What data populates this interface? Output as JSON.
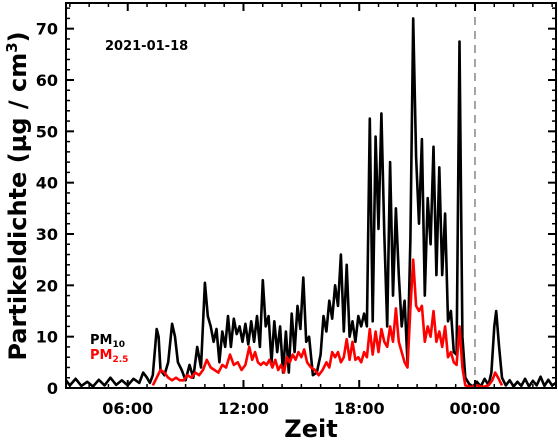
{
  "chart_data": {
    "type": "line",
    "date_label": "2021-01-18",
    "xlabel": "Zeit",
    "ylabel_prefix": "Partikeldichte (µg / cm",
    "ylabel_sup": "3",
    "ylabel_suffix": ")",
    "x_unit": "hours",
    "xlim": [
      2.8,
      28.2
    ],
    "ylim": [
      0,
      75
    ],
    "x_ticks": [
      {
        "x": 6,
        "label": "06:00"
      },
      {
        "x": 12,
        "label": "12:00"
      },
      {
        "x": 18,
        "label": "18:00"
      },
      {
        "x": 24,
        "label": "00:00"
      }
    ],
    "y_ticks": [
      {
        "y": 0,
        "label": "0"
      },
      {
        "y": 10,
        "label": "10"
      },
      {
        "y": 20,
        "label": "20"
      },
      {
        "y": 30,
        "label": "30"
      },
      {
        "y": 40,
        "label": "40"
      },
      {
        "y": 50,
        "label": "50"
      },
      {
        "y": 60,
        "label": "60"
      },
      {
        "y": 70,
        "label": "70"
      }
    ],
    "vline_x": 24,
    "vline_style": "dashed gray",
    "legend": {
      "placement": "lower-left",
      "entries": [
        {
          "base": "PM",
          "sub": "10",
          "color": "#000000"
        },
        {
          "base": "PM",
          "sub": "2.5",
          "color": "#ff0000"
        }
      ]
    },
    "series": [
      {
        "name": "PM10",
        "color": "#000000",
        "points": [
          [
            2.8,
            1.5
          ],
          [
            3.0,
            0.5
          ],
          [
            3.3,
            1.8
          ],
          [
            3.6,
            0.4
          ],
          [
            3.9,
            1.2
          ],
          [
            4.2,
            0.3
          ],
          [
            4.5,
            1.6
          ],
          [
            4.8,
            0.5
          ],
          [
            5.1,
            2.0
          ],
          [
            5.4,
            0.6
          ],
          [
            5.7,
            1.5
          ],
          [
            6.0,
            0.5
          ],
          [
            6.3,
            1.8
          ],
          [
            6.6,
            1.0
          ],
          [
            6.8,
            3.0
          ],
          [
            7.0,
            2.0
          ],
          [
            7.15,
            1.0
          ],
          [
            7.3,
            2.5
          ],
          [
            7.5,
            11.5
          ],
          [
            7.6,
            10.0
          ],
          [
            7.7,
            3.5
          ],
          [
            7.9,
            2.5
          ],
          [
            8.1,
            5.0
          ],
          [
            8.3,
            12.5
          ],
          [
            8.45,
            10.0
          ],
          [
            8.6,
            5.0
          ],
          [
            8.8,
            3.5
          ],
          [
            9.0,
            1.5
          ],
          [
            9.2,
            4.5
          ],
          [
            9.4,
            2.0
          ],
          [
            9.6,
            8.0
          ],
          [
            9.8,
            4.0
          ],
          [
            10.0,
            20.5
          ],
          [
            10.15,
            14.0
          ],
          [
            10.3,
            12.0
          ],
          [
            10.45,
            9.0
          ],
          [
            10.6,
            11.5
          ],
          [
            10.75,
            5.0
          ],
          [
            10.9,
            11.0
          ],
          [
            11.05,
            8.0
          ],
          [
            11.2,
            14.0
          ],
          [
            11.35,
            8.0
          ],
          [
            11.5,
            13.5
          ],
          [
            11.65,
            10.5
          ],
          [
            11.8,
            12.0
          ],
          [
            11.95,
            9.0
          ],
          [
            12.1,
            12.5
          ],
          [
            12.25,
            8.5
          ],
          [
            12.4,
            13.0
          ],
          [
            12.55,
            9.0
          ],
          [
            12.7,
            14.0
          ],
          [
            12.85,
            8.0
          ],
          [
            13.0,
            21.0
          ],
          [
            13.15,
            12.0
          ],
          [
            13.3,
            14.0
          ],
          [
            13.45,
            5.0
          ],
          [
            13.6,
            13.0
          ],
          [
            13.75,
            7.0
          ],
          [
            13.9,
            12.0
          ],
          [
            14.05,
            3.0
          ],
          [
            14.2,
            11.0
          ],
          [
            14.35,
            3.0
          ],
          [
            14.5,
            14.5
          ],
          [
            14.65,
            7.0
          ],
          [
            14.8,
            16.0
          ],
          [
            14.95,
            11.5
          ],
          [
            15.1,
            21.5
          ],
          [
            15.25,
            9.0
          ],
          [
            15.4,
            10.0
          ],
          [
            15.6,
            2.5
          ],
          [
            15.8,
            3.0
          ],
          [
            16.0,
            6.5
          ],
          [
            16.15,
            14.0
          ],
          [
            16.3,
            11.0
          ],
          [
            16.45,
            17.0
          ],
          [
            16.6,
            13.5
          ],
          [
            16.75,
            20.0
          ],
          [
            16.9,
            16.0
          ],
          [
            17.05,
            26.0
          ],
          [
            17.2,
            11.0
          ],
          [
            17.35,
            24.0
          ],
          [
            17.5,
            10.0
          ],
          [
            17.65,
            13.0
          ],
          [
            17.8,
            9.0
          ],
          [
            17.95,
            14.0
          ],
          [
            18.1,
            12.0
          ],
          [
            18.25,
            14.5
          ],
          [
            18.4,
            12.0
          ],
          [
            18.55,
            52.5
          ],
          [
            18.7,
            13.0
          ],
          [
            18.85,
            49.0
          ],
          [
            19.0,
            31.0
          ],
          [
            19.15,
            53.5
          ],
          [
            19.3,
            30.0
          ],
          [
            19.45,
            12.0
          ],
          [
            19.6,
            44.0
          ],
          [
            19.75,
            18.0
          ],
          [
            19.9,
            35.0
          ],
          [
            20.05,
            22.0
          ],
          [
            20.2,
            12.0
          ],
          [
            20.35,
            17.0
          ],
          [
            20.5,
            5.0
          ],
          [
            20.65,
            29.0
          ],
          [
            20.8,
            72.0
          ],
          [
            20.95,
            45.0
          ],
          [
            21.1,
            32.0
          ],
          [
            21.25,
            48.5
          ],
          [
            21.4,
            18.0
          ],
          [
            21.55,
            37.0
          ],
          [
            21.7,
            28.0
          ],
          [
            21.85,
            47.0
          ],
          [
            22.0,
            22.0
          ],
          [
            22.15,
            43.0
          ],
          [
            22.3,
            22.0
          ],
          [
            22.45,
            34.0
          ],
          [
            22.6,
            13.0
          ],
          [
            22.75,
            15.0
          ],
          [
            22.9,
            7.0
          ],
          [
            23.05,
            6.5
          ],
          [
            23.2,
            67.5
          ],
          [
            23.35,
            10.0
          ],
          [
            23.5,
            2.0
          ],
          [
            23.7,
            0.8
          ],
          [
            23.9,
            0.3
          ],
          [
            24.1,
            1.2
          ],
          [
            24.3,
            0.3
          ],
          [
            24.5,
            1.8
          ],
          [
            24.7,
            0.6
          ],
          [
            24.85,
            3.0
          ],
          [
            25.0,
            12.0
          ],
          [
            25.1,
            15.0
          ],
          [
            25.25,
            8.0
          ],
          [
            25.4,
            2.0
          ],
          [
            25.6,
            0.5
          ],
          [
            25.8,
            1.5
          ],
          [
            26.0,
            0.3
          ],
          [
            26.2,
            1.2
          ],
          [
            26.4,
            0.4
          ],
          [
            26.6,
            1.8
          ],
          [
            26.8,
            0.3
          ],
          [
            27.0,
            1.4
          ],
          [
            27.2,
            0.5
          ],
          [
            27.4,
            2.2
          ],
          [
            27.6,
            0.4
          ],
          [
            27.8,
            1.6
          ],
          [
            28.0,
            0.5
          ],
          [
            28.2,
            1.0
          ]
        ]
      },
      {
        "name": "PM2.5",
        "color": "#ff0000",
        "points": [
          [
            7.3,
            0.5
          ],
          [
            7.5,
            2.0
          ],
          [
            7.7,
            3.5
          ],
          [
            7.9,
            3.0
          ],
          [
            8.1,
            2.0
          ],
          [
            8.3,
            1.5
          ],
          [
            8.5,
            2.0
          ],
          [
            8.7,
            1.5
          ],
          [
            8.9,
            1.5
          ],
          [
            9.1,
            2.5
          ],
          [
            9.3,
            2.0
          ],
          [
            9.5,
            3.0
          ],
          [
            9.7,
            2.5
          ],
          [
            9.9,
            3.5
          ],
          [
            10.1,
            5.5
          ],
          [
            10.3,
            4.0
          ],
          [
            10.5,
            3.5
          ],
          [
            10.7,
            3.0
          ],
          [
            10.9,
            4.5
          ],
          [
            11.1,
            4.0
          ],
          [
            11.3,
            6.5
          ],
          [
            11.5,
            4.5
          ],
          [
            11.7,
            5.0
          ],
          [
            11.9,
            3.5
          ],
          [
            12.1,
            4.5
          ],
          [
            12.3,
            8.0
          ],
          [
            12.45,
            5.5
          ],
          [
            12.6,
            7.0
          ],
          [
            12.75,
            5.0
          ],
          [
            12.9,
            4.5
          ],
          [
            13.05,
            5.0
          ],
          [
            13.2,
            4.5
          ],
          [
            13.35,
            5.5
          ],
          [
            13.5,
            4.0
          ],
          [
            13.65,
            5.5
          ],
          [
            13.8,
            3.5
          ],
          [
            13.95,
            4.5
          ],
          [
            14.1,
            3.0
          ],
          [
            14.25,
            6.0
          ],
          [
            14.4,
            5.0
          ],
          [
            14.55,
            6.5
          ],
          [
            14.7,
            5.5
          ],
          [
            14.85,
            7.0
          ],
          [
            15.0,
            6.0
          ],
          [
            15.15,
            7.5
          ],
          [
            15.3,
            5.0
          ],
          [
            15.5,
            4.0
          ],
          [
            15.7,
            3.5
          ],
          [
            15.9,
            2.5
          ],
          [
            16.1,
            3.5
          ],
          [
            16.3,
            5.0
          ],
          [
            16.45,
            4.0
          ],
          [
            16.6,
            7.0
          ],
          [
            16.75,
            6.0
          ],
          [
            16.9,
            7.0
          ],
          [
            17.05,
            5.0
          ],
          [
            17.2,
            6.0
          ],
          [
            17.35,
            9.5
          ],
          [
            17.5,
            5.5
          ],
          [
            17.65,
            9.0
          ],
          [
            17.8,
            5.5
          ],
          [
            17.95,
            6.0
          ],
          [
            18.1,
            5.0
          ],
          [
            18.25,
            7.0
          ],
          [
            18.4,
            6.0
          ],
          [
            18.55,
            11.5
          ],
          [
            18.7,
            6.5
          ],
          [
            18.85,
            11.0
          ],
          [
            19.0,
            7.0
          ],
          [
            19.15,
            11.5
          ],
          [
            19.3,
            9.0
          ],
          [
            19.45,
            8.0
          ],
          [
            19.6,
            12.0
          ],
          [
            19.75,
            9.0
          ],
          [
            19.9,
            15.5
          ],
          [
            20.05,
            9.0
          ],
          [
            20.2,
            7.0
          ],
          [
            20.35,
            5.0
          ],
          [
            20.5,
            4.0
          ],
          [
            20.65,
            15.5
          ],
          [
            20.8,
            25.0
          ],
          [
            20.95,
            16.0
          ],
          [
            21.1,
            15.0
          ],
          [
            21.25,
            16.0
          ],
          [
            21.4,
            9.0
          ],
          [
            21.55,
            12.0
          ],
          [
            21.7,
            10.0
          ],
          [
            21.85,
            15.0
          ],
          [
            22.0,
            9.0
          ],
          [
            22.15,
            11.0
          ],
          [
            22.3,
            8.0
          ],
          [
            22.45,
            12.0
          ],
          [
            22.6,
            6.0
          ],
          [
            22.75,
            7.0
          ],
          [
            22.9,
            5.0
          ],
          [
            23.05,
            4.5
          ],
          [
            23.2,
            12.0
          ],
          [
            23.35,
            4.0
          ],
          [
            23.5,
            0.5
          ],
          [
            23.8,
            0.2
          ],
          [
            24.1,
            0.5
          ],
          [
            24.4,
            0.2
          ],
          [
            24.7,
            0.5
          ],
          [
            24.9,
            1.5
          ],
          [
            25.05,
            3.0
          ],
          [
            25.2,
            2.0
          ],
          [
            25.4,
            0.5
          ]
        ]
      }
    ]
  }
}
